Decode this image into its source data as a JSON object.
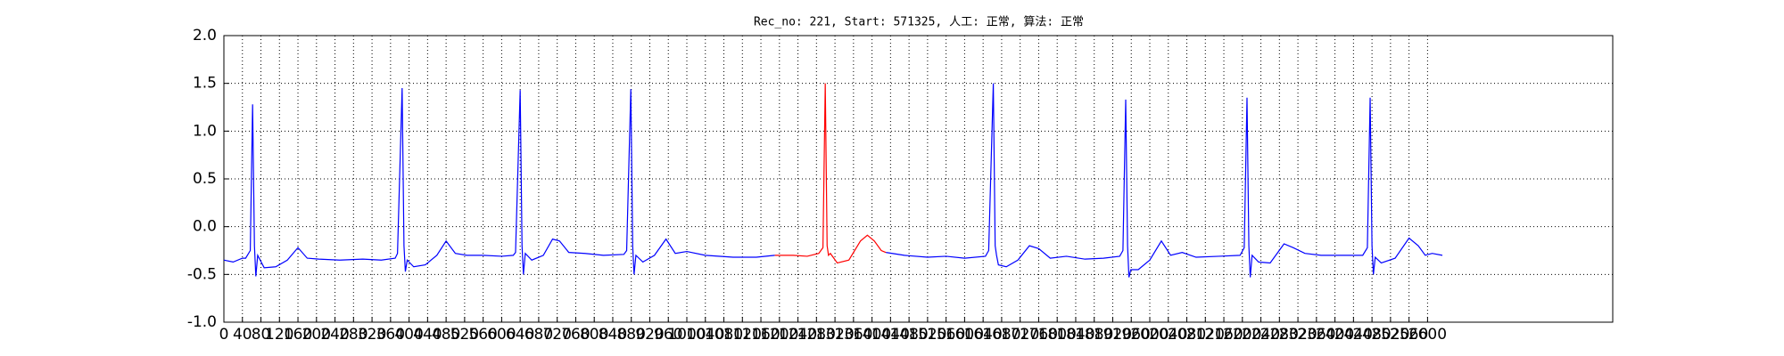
{
  "chart_data": {
    "type": "line",
    "title": "Rec_no: 221, Start: 571325, 人工: 正常, 算法: 正常",
    "xlim": [
      0,
      3000
    ],
    "xticks": [
      0,
      40,
      80,
      120,
      160,
      200,
      240,
      280,
      320,
      360,
      400,
      440,
      480,
      520,
      560,
      600,
      640,
      680,
      720,
      760,
      800,
      840,
      880,
      920,
      960,
      1000,
      1040,
      1080,
      1120,
      1160,
      1200,
      1240,
      1280,
      1320,
      1360,
      1400,
      1440,
      1480,
      1520,
      1560,
      1600,
      1640,
      1680,
      1720,
      1760,
      1800,
      1840,
      1880,
      1920,
      1960,
      2000,
      2040,
      2080,
      2120,
      2160,
      2200,
      2240,
      2280,
      2320,
      2360,
      2400,
      2440,
      2480,
      2520,
      2560,
      2600
    ],
    "ylim": [
      -1.0,
      2.0
    ],
    "yticks": [
      {
        "value": -1.0,
        "label": "-1.0"
      },
      {
        "value": -0.5,
        "label": "-0.5"
      },
      {
        "value": 0,
        "label": "0.0"
      },
      {
        "value": 0.5,
        "label": "0.5"
      },
      {
        "value": 1.0,
        "label": "1.0"
      },
      {
        "value": 1.5,
        "label": "1.5"
      },
      {
        "value": 2.0,
        "label": "2.0"
      }
    ],
    "grid": true,
    "series": [
      {
        "color": "#0000ff",
        "x": [
          0,
          20,
          40,
          47,
          57,
          62,
          66,
          69,
          73,
          87,
          112,
          137,
          160,
          180,
          205,
          250,
          300,
          340,
          370,
          375,
          385,
          389,
          392,
          396,
          410,
          435,
          460,
          480,
          500,
          525,
          560,
          600,
          625,
          630,
          640,
          644,
          647,
          651,
          665,
          690,
          710,
          725,
          745,
          780,
          820,
          864,
          870,
          879,
          883,
          886,
          890,
          905,
          930,
          955,
          975,
          1000,
          1040,
          1100,
          1150,
          1190,
          1310,
          1430,
          1470,
          1520,
          1560,
          1600,
          1645,
          1652,
          1662,
          1666,
          1669,
          1673,
          1690,
          1715,
          1740,
          1760,
          1785,
          1820,
          1860,
          1900,
          1935,
          1942,
          1948,
          1952,
          1955,
          1959,
          1975,
          2000,
          2025,
          2045,
          2070,
          2100,
          2150,
          2195,
          2204,
          2210,
          2214,
          2217,
          2221,
          2235,
          2260,
          2290,
          2310,
          2335,
          2370,
          2420,
          2460,
          2470,
          2476,
          2480,
          2483,
          2487,
          2500,
          2530,
          2560,
          2580,
          2595,
          2610,
          2632
        ],
        "values": [
          -0.35,
          -0.37,
          -0.33,
          -0.33,
          -0.25,
          1.28,
          -0.2,
          -0.52,
          -0.3,
          -0.43,
          -0.42,
          -0.35,
          -0.22,
          -0.33,
          -0.34,
          -0.35,
          -0.34,
          -0.35,
          -0.33,
          -0.28,
          1.45,
          -0.2,
          -0.47,
          -0.35,
          -0.42,
          -0.4,
          -0.3,
          -0.15,
          -0.28,
          -0.3,
          -0.3,
          -0.31,
          -0.3,
          -0.27,
          1.43,
          -0.2,
          -0.5,
          -0.28,
          -0.35,
          -0.3,
          -0.13,
          -0.15,
          -0.27,
          -0.28,
          -0.3,
          -0.29,
          -0.25,
          1.44,
          -0.2,
          -0.5,
          -0.3,
          -0.37,
          -0.3,
          -0.13,
          -0.28,
          -0.26,
          -0.3,
          -0.32,
          -0.32,
          -0.3,
          null,
          -0.27,
          -0.3,
          -0.32,
          -0.31,
          -0.33,
          -0.31,
          -0.25,
          1.5,
          -0.2,
          -0.3,
          -0.4,
          -0.42,
          -0.35,
          -0.2,
          -0.23,
          -0.33,
          -0.31,
          -0.34,
          -0.33,
          -0.31,
          -0.25,
          1.33,
          -0.2,
          -0.53,
          -0.45,
          -0.45,
          -0.35,
          -0.15,
          -0.3,
          -0.27,
          -0.32,
          -0.31,
          -0.3,
          -0.22,
          1.35,
          -0.2,
          -0.53,
          -0.3,
          -0.37,
          -0.38,
          -0.18,
          -0.22,
          -0.28,
          -0.3,
          -0.3,
          -0.3,
          -0.22,
          1.35,
          -0.2,
          -0.5,
          -0.32,
          -0.38,
          -0.33,
          -0.12,
          -0.2,
          -0.3,
          -0.28,
          -0.3
        ]
      },
      {
        "color": "#ff0000",
        "x": [
          1190,
          1230,
          1260,
          1285,
          1294,
          1299,
          1303,
          1306,
          1310,
          1325,
          1350,
          1375,
          1390,
          1405,
          1420,
          1430
        ],
        "values": [
          -0.3,
          -0.3,
          -0.31,
          -0.28,
          -0.22,
          1.5,
          -0.2,
          -0.3,
          -0.28,
          -0.38,
          -0.35,
          -0.15,
          -0.09,
          -0.15,
          -0.25,
          -0.27
        ]
      }
    ]
  }
}
